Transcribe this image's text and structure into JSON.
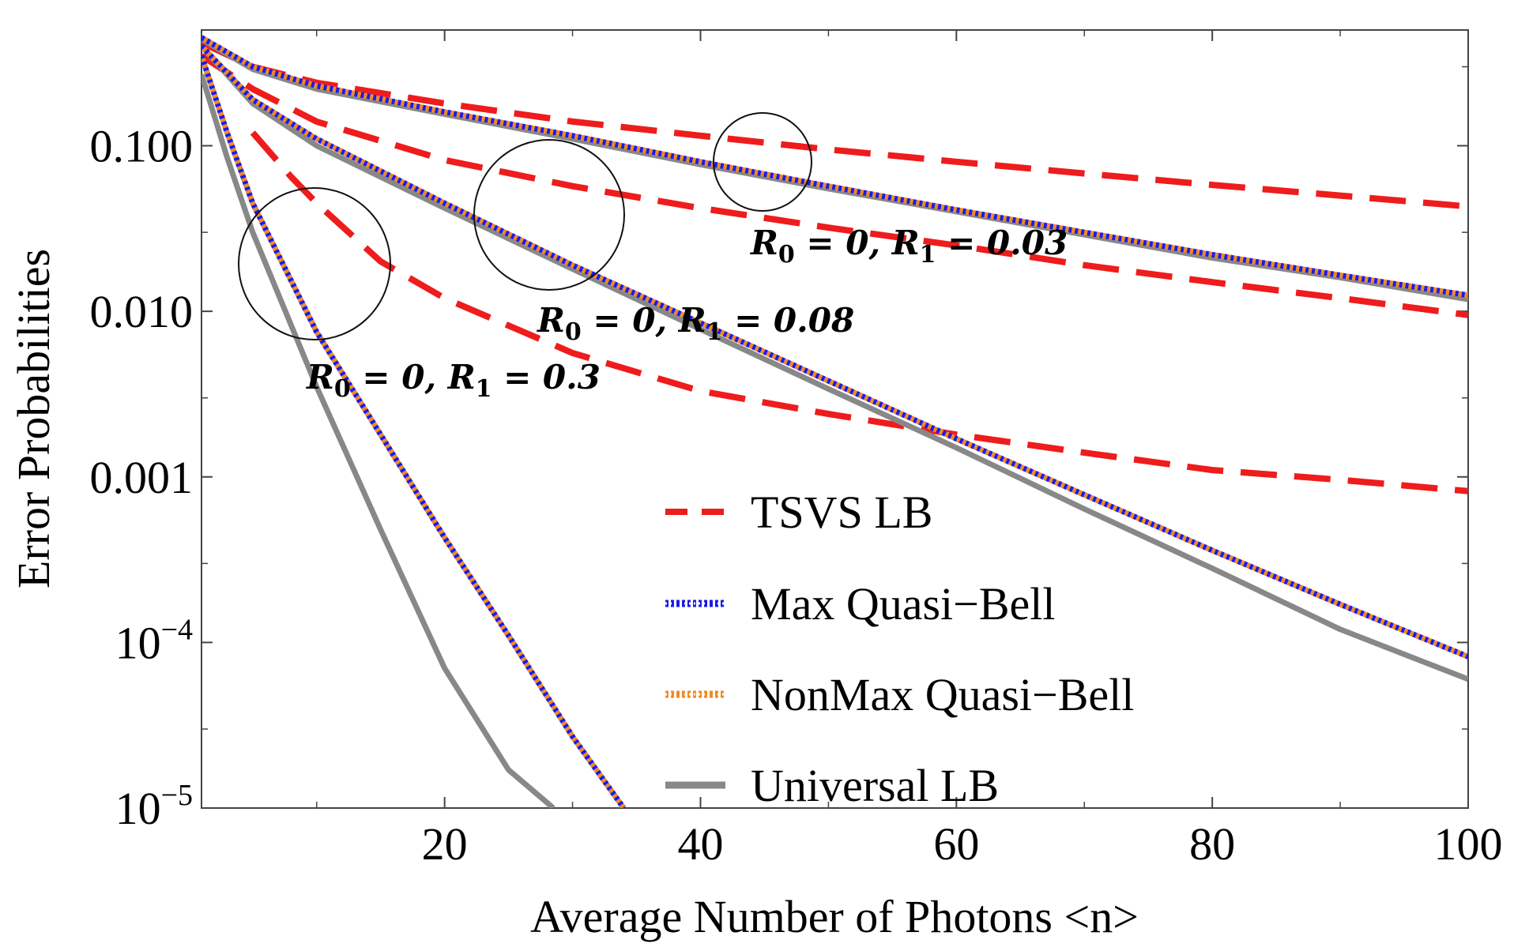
{
  "chart_data": {
    "type": "line",
    "title": "",
    "xlabel": "Average Number of Photons <n>",
    "ylabel": "Error Probabilities",
    "xscale": "linear",
    "yscale": "log",
    "xlim": [
      1,
      100
    ],
    "ylim": [
      1e-05,
      0.5
    ],
    "xticks": [
      {
        "value": 20,
        "label": "20"
      },
      {
        "value": 40,
        "label": "40"
      },
      {
        "value": 60,
        "label": "60"
      },
      {
        "value": 80,
        "label": "80"
      },
      {
        "value": 100,
        "label": "100"
      }
    ],
    "yticks": [
      {
        "value": 0.1,
        "label": "0.100"
      },
      {
        "value": 0.01,
        "label": "0.010"
      },
      {
        "value": 0.001,
        "label": "0.001"
      },
      {
        "value": 0.0001,
        "label": "10",
        "exponent": "−4"
      },
      {
        "value": 1e-05,
        "label": "10",
        "exponent": "−5"
      }
    ],
    "legend": {
      "placement": "bottom-right",
      "entries": [
        {
          "name": "TSVS LB",
          "color": "#ee1c1c",
          "style": "dashed"
        },
        {
          "name": "Max Quasi−Bell",
          "color": "#1a1aee",
          "style": "dotted"
        },
        {
          "name": "NonMax Quasi−Bell",
          "color": "#f08a20",
          "style": "dotted"
        },
        {
          "name": "Universal LB",
          "color": "#888888",
          "style": "solid"
        }
      ]
    },
    "annotations": [
      {
        "text": "R0 = 0, R1 = 0.03",
        "parts": [
          "R",
          "0",
          " = 0, ",
          "R",
          "1",
          " = 0.03"
        ]
      },
      {
        "text": "R0 = 0, R1 = 0.08",
        "parts": [
          "R",
          "0",
          " = 0, ",
          "R",
          "1",
          " = 0.08"
        ]
      },
      {
        "text": "R0 = 0, R1 = 0.3",
        "parts": [
          "R",
          "0",
          " = 0, ",
          "R",
          "1",
          " = 0.3"
        ]
      }
    ],
    "groups": [
      {
        "annotation": "R0 = 0, R1 = 0.03",
        "series": [
          {
            "name": "TSVS LB",
            "x": [
              1,
              5,
              10,
              20,
              30,
              40,
              50,
              60,
              70,
              80,
              90,
              100
            ],
            "y": [
              0.42,
              0.3,
              0.24,
              0.18,
              0.14,
              0.115,
              0.095,
              0.08,
              0.068,
              0.058,
              0.05,
              0.043
            ]
          },
          {
            "name": "Max Quasi−Bell",
            "x": [
              1,
              5,
              10,
              20,
              30,
              40,
              50,
              60,
              70,
              80,
              90,
              100
            ],
            "y": [
              0.45,
              0.3,
              0.23,
              0.16,
              0.115,
              0.08,
              0.057,
              0.041,
              0.03,
              0.022,
              0.0165,
              0.0125
            ]
          },
          {
            "name": "NonMax Quasi−Bell",
            "x": [
              1,
              5,
              10,
              20,
              30,
              40,
              50,
              60,
              70,
              80,
              90,
              100
            ],
            "y": [
              0.45,
              0.3,
              0.23,
              0.16,
              0.115,
              0.08,
              0.057,
              0.041,
              0.03,
              0.022,
              0.0165,
              0.0125
            ]
          },
          {
            "name": "Universal LB",
            "x": [
              1,
              5,
              10,
              20,
              30,
              40,
              50,
              60,
              70,
              80,
              90,
              100
            ],
            "y": [
              0.44,
              0.29,
              0.22,
              0.155,
              0.11,
              0.077,
              0.055,
              0.04,
              0.029,
              0.021,
              0.016,
              0.0118
            ]
          }
        ]
      },
      {
        "annotation": "R0 = 0, R1 = 0.08",
        "series": [
          {
            "name": "TSVS LB",
            "x": [
              1,
              5,
              10,
              20,
              30,
              40,
              50,
              60,
              70,
              80,
              90,
              100
            ],
            "y": [
              0.35,
              0.22,
              0.14,
              0.082,
              0.057,
              0.042,
              0.032,
              0.025,
              0.019,
              0.015,
              0.012,
              0.0095
            ]
          },
          {
            "name": "Max Quasi−Bell",
            "x": [
              1,
              5,
              10,
              20,
              30,
              40,
              50,
              60,
              70,
              80,
              90,
              100
            ],
            "y": [
              0.4,
              0.19,
              0.11,
              0.045,
              0.019,
              0.0085,
              0.0038,
              0.0017,
              0.00078,
              0.00036,
              0.00017,
              8.2e-05
            ]
          },
          {
            "name": "NonMax Quasi−Bell",
            "x": [
              1,
              5,
              10,
              20,
              30,
              40,
              50,
              60,
              70,
              80,
              90,
              100
            ],
            "y": [
              0.4,
              0.19,
              0.11,
              0.045,
              0.019,
              0.0085,
              0.0038,
              0.0017,
              0.00078,
              0.00036,
              0.00017,
              8.2e-05
            ]
          },
          {
            "name": "Universal LB",
            "x": [
              1,
              5,
              10,
              20,
              30,
              40,
              50,
              60,
              70,
              80,
              90,
              100
            ],
            "y": [
              0.4,
              0.18,
              0.1,
              0.042,
              0.018,
              0.0078,
              0.0034,
              0.0015,
              0.00064,
              0.00028,
              0.00012,
              6e-05
            ]
          }
        ]
      },
      {
        "annotation": "R0 = 0, R1 = 0.3",
        "series": [
          {
            "name": "TSVS LB",
            "x": [
              5,
              8,
              10,
              15,
              20,
              30,
              40,
              50,
              60,
              70,
              80,
              90,
              100
            ],
            "y": [
              0.12,
              0.065,
              0.045,
              0.02,
              0.012,
              0.0056,
              0.0033,
              0.0024,
              0.0018,
              0.0014,
              0.0011,
              0.00096,
              0.00082
            ]
          },
          {
            "name": "Max Quasi−Bell",
            "x": [
              1,
              3,
              5,
              10,
              15,
              20,
              25,
              30,
              34
            ],
            "y": [
              0.35,
              0.12,
              0.045,
              0.0075,
              0.0018,
              0.00043,
              0.00011,
              2.7e-05,
              1e-05
            ]
          },
          {
            "name": "NonMax Quasi−Bell",
            "x": [
              1,
              3,
              5,
              10,
              15,
              20,
              25,
              30,
              34
            ],
            "y": [
              0.35,
              0.12,
              0.045,
              0.0075,
              0.0018,
              0.00043,
              0.00011,
              2.7e-05,
              1e-05
            ]
          },
          {
            "name": "Universal LB",
            "x": [
              1,
              3,
              5,
              10,
              15,
              20,
              25,
              28.5
            ],
            "y": [
              0.27,
              0.085,
              0.03,
              0.0035,
              0.00048,
              7e-05,
              1.7e-05,
              1e-05
            ]
          }
        ]
      }
    ],
    "colors": {
      "tsvs": "#ee1c1c",
      "max": "#1a1aee",
      "nonmax": "#f08a20",
      "universal": "#888888"
    }
  }
}
